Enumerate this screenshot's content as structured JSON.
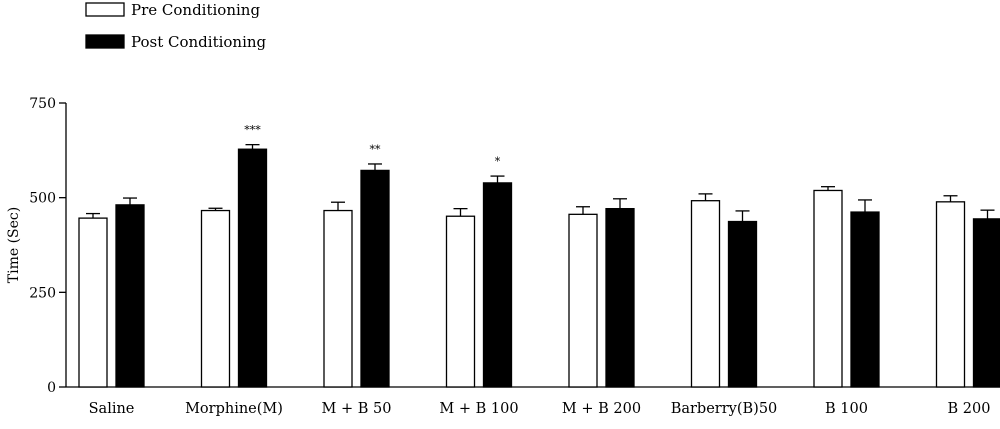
{
  "chart_data": {
    "type": "bar",
    "title": "",
    "xlabel": "",
    "ylabel": "Time (Sec)",
    "ylim": [
      0,
      750
    ],
    "yticks": [
      "0",
      "250",
      "500",
      "750"
    ],
    "grid": false,
    "legend_position": "top-left",
    "categories": [
      "Saline",
      "Morphine(M)",
      "M + B 50",
      "M + B 100",
      "M + B 200",
      "Barberry(B)50",
      "B 100",
      "B 200"
    ],
    "series": [
      {
        "name": "Pre Conditioning",
        "color": "#ffffff",
        "values": [
          446,
          466,
          466,
          451,
          456,
          492,
          519,
          489
        ],
        "errors": [
          12,
          6,
          22,
          20,
          20,
          18,
          10,
          16
        ]
      },
      {
        "name": "Post Conditioning",
        "color": "#000000",
        "values": [
          481,
          628,
          572,
          539,
          471,
          437,
          462,
          444
        ],
        "errors": [
          18,
          12,
          17,
          18,
          26,
          28,
          32,
          23
        ]
      }
    ],
    "annotations": [
      "",
      "***",
      "**",
      "*",
      "",
      "",
      "",
      ""
    ]
  }
}
